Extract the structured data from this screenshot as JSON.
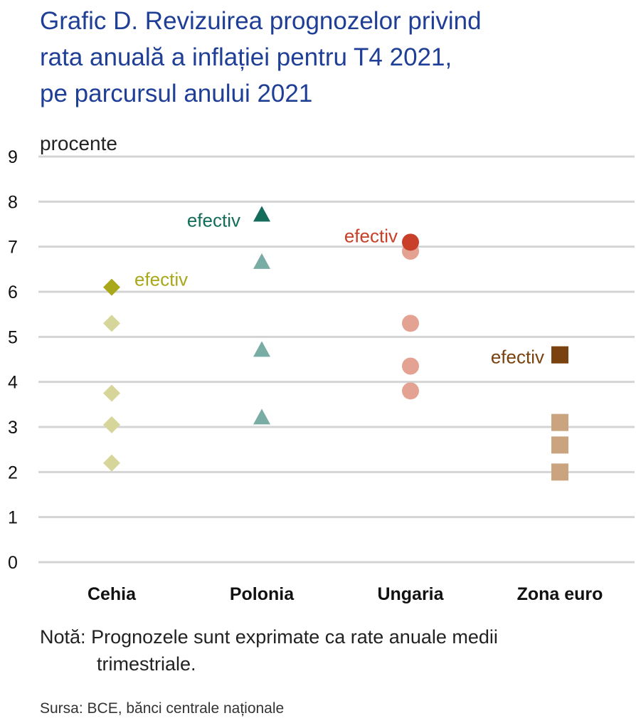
{
  "title": {
    "line1": "Grafic D. Revizuirea prognozelor privind",
    "line2": "rata anuală a inflației pentru T4 2021,",
    "line3": "pe parcursul  anului 2021"
  },
  "chart_data": {
    "type": "scatter",
    "unit_label": "procente",
    "ylim": [
      0,
      9
    ],
    "yticks": [
      0,
      1,
      2,
      3,
      4,
      5,
      6,
      7,
      8,
      9
    ],
    "grid": true,
    "categories": [
      "Cehia",
      "Polonia",
      "Ungaria",
      "Zona euro"
    ],
    "series": [
      {
        "category": "Cehia",
        "marker": "diamond",
        "forecast_color": "#d6d69a",
        "actual_color": "#a8a81a",
        "forecasts": [
          2.2,
          3.05,
          3.75,
          5.3
        ],
        "actual": 6.1,
        "actual_label": "efectiv"
      },
      {
        "category": "Polonia",
        "marker": "triangle",
        "forecast_color": "#78aca4",
        "actual_color": "#136d5a",
        "forecasts": [
          3.2,
          4.7,
          6.65
        ],
        "actual": 7.7,
        "actual_label": "efectiv"
      },
      {
        "category": "Ungaria",
        "marker": "circle",
        "forecast_color": "#e3a292",
        "actual_color": "#c8402a",
        "forecasts": [
          3.8,
          4.35,
          5.3,
          6.9
        ],
        "actual": 7.1,
        "actual_label": "efectiv"
      },
      {
        "category": "Zona euro",
        "marker": "square",
        "forecast_color": "#caa47e",
        "actual_color": "#7a420e",
        "forecasts": [
          2.0,
          2.6,
          3.1,
          4.6
        ],
        "actual": 4.6,
        "actual_label": "efectiv"
      }
    ]
  },
  "note": {
    "label": "Notă:",
    "text_line1": "Prognozele sunt exprimate ca rate anuale medii",
    "text_line2": "trimestriale."
  },
  "source": "Sursa: BCE, bănci centrale naționale"
}
